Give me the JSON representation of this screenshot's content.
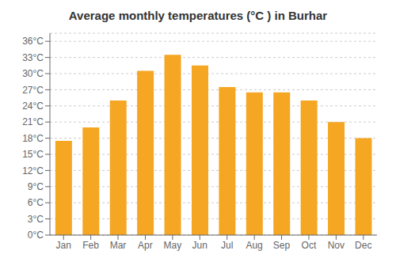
{
  "chart_data": {
    "type": "bar",
    "title": "Average monthly temperatures (°C ) in Burhar",
    "categories": [
      "Jan",
      "Feb",
      "Mar",
      "Apr",
      "May",
      "Jun",
      "Jul",
      "Aug",
      "Sep",
      "Oct",
      "Nov",
      "Dec"
    ],
    "values": [
      17.5,
      20.0,
      25.0,
      30.5,
      33.5,
      31.5,
      27.5,
      26.5,
      26.5,
      25.0,
      21.0,
      18.0
    ],
    "color": "#F5A623",
    "ylim": [
      0,
      37.5
    ],
    "yticks": [
      {
        "value": 0,
        "label": "0°C"
      },
      {
        "value": 3,
        "label": "3°C"
      },
      {
        "value": 6,
        "label": "6°C"
      },
      {
        "value": 9,
        "label": "9°C"
      },
      {
        "value": 12,
        "label": "12°C"
      },
      {
        "value": 15,
        "label": "15°C"
      },
      {
        "value": 18,
        "label": "18°C"
      },
      {
        "value": 21,
        "label": "21°C"
      },
      {
        "value": 24,
        "label": "24°C"
      },
      {
        "value": 27,
        "label": "27°C"
      },
      {
        "value": 30,
        "label": "30°C"
      },
      {
        "value": 33,
        "label": "33°C"
      },
      {
        "value": 36,
        "label": "36°C"
      }
    ],
    "grid": true
  }
}
